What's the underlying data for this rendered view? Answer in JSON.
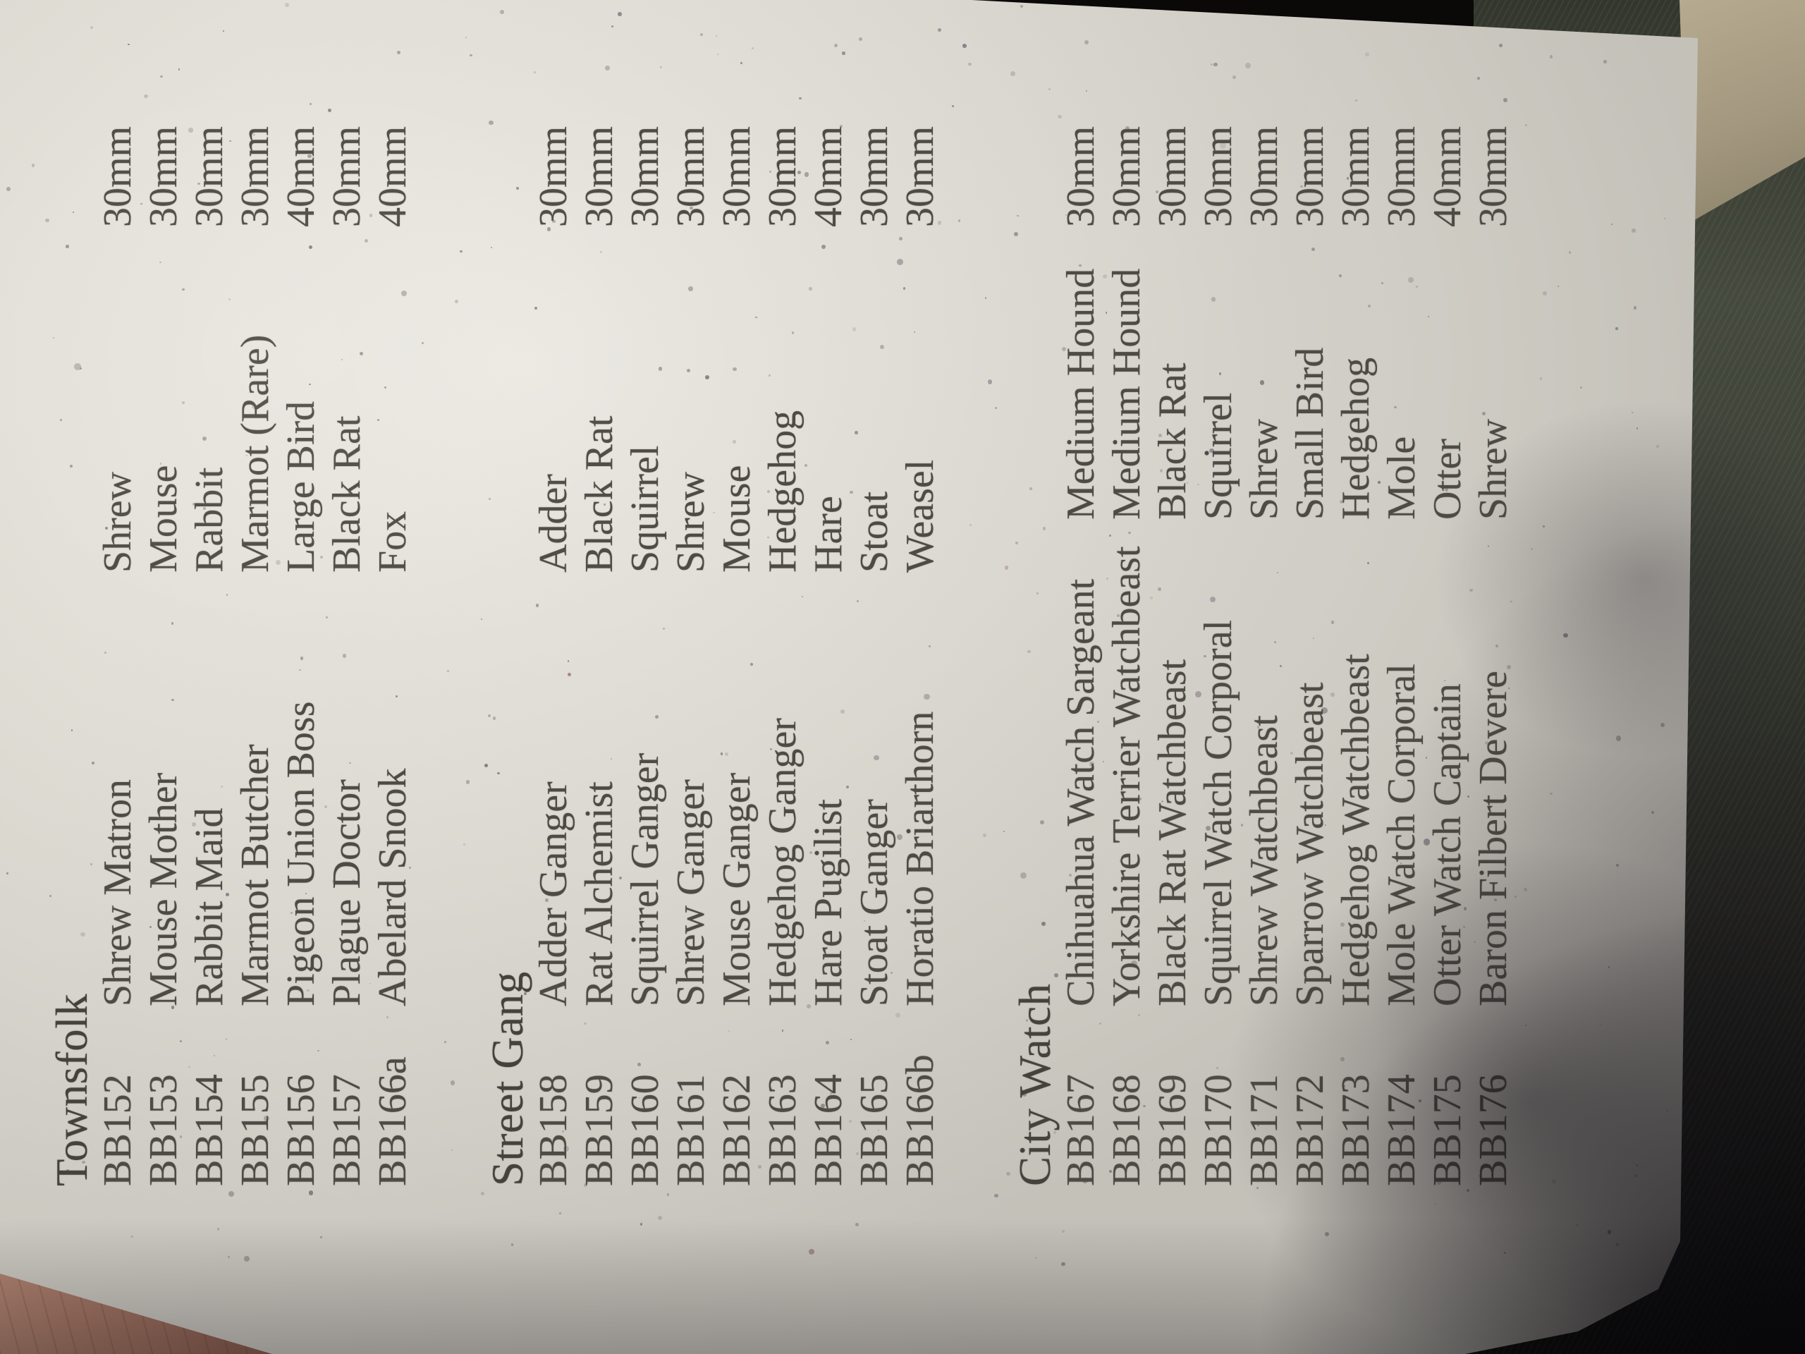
{
  "document": {
    "sections": [
      {
        "title": "Townsfolk",
        "rows": [
          {
            "code": "BB152",
            "name": "Shrew Matron",
            "animal": "Shrew",
            "size": "30mm"
          },
          {
            "code": "BB153",
            "name": "Mouse Mother",
            "animal": "Mouse",
            "size": "30mm"
          },
          {
            "code": "BB154",
            "name": "Rabbit Maid",
            "animal": "Rabbit",
            "size": "30mm"
          },
          {
            "code": "BB155",
            "name": "Marmot Butcher",
            "animal": "Marmot (Rare)",
            "size": "30mm"
          },
          {
            "code": "BB156",
            "name": "Pigeon Union Boss",
            "animal": "Large Bird",
            "size": "40mm"
          },
          {
            "code": "BB157",
            "name": "Plague Doctor",
            "animal": "Black Rat",
            "size": "30mm"
          },
          {
            "code": "BB166a",
            "name": "Abelard Snook",
            "animal": "Fox",
            "size": "40mm"
          }
        ]
      },
      {
        "title": "Street Gang",
        "rows": [
          {
            "code": "BB158",
            "name": "Adder Ganger",
            "animal": "Adder",
            "size": "30mm"
          },
          {
            "code": "BB159",
            "name": "Rat Alchemist",
            "animal": "Black Rat",
            "size": "30mm"
          },
          {
            "code": "BB160",
            "name": "Squirrel Ganger",
            "animal": "Squirrel",
            "size": "30mm"
          },
          {
            "code": "BB161",
            "name": "Shrew Ganger",
            "animal": "Shrew",
            "size": "30mm"
          },
          {
            "code": "BB162",
            "name": "Mouse Ganger",
            "animal": "Mouse",
            "size": "30mm"
          },
          {
            "code": "BB163",
            "name": "Hedgehog Ganger",
            "animal": "Hedgehog",
            "size": "30mm"
          },
          {
            "code": "BB164",
            "name": "Hare Pugilist",
            "animal": "Hare",
            "size": "40mm"
          },
          {
            "code": "BB165",
            "name": "Stoat Ganger",
            "animal": "Stoat",
            "size": "30mm"
          },
          {
            "code": "BB166b",
            "name": "Horatio Briarthorn",
            "animal": "Weasel",
            "size": "30mm"
          }
        ]
      },
      {
        "title": "City Watch",
        "rows": [
          {
            "code": "BB167",
            "name": "Chihuahua Watch Sargeant",
            "animal": "Medium Hound",
            "size": "30mm"
          },
          {
            "code": "BB168",
            "name": "Yorkshire Terrier Watchbeast",
            "animal": "Medium Hound",
            "size": "30mm"
          },
          {
            "code": "BB169",
            "name": "Black Rat Watchbeast",
            "animal": "Black Rat",
            "size": "30mm"
          },
          {
            "code": "BB170",
            "name": "Squirrel Watch Corporal",
            "animal": "Squirrel",
            "size": "30mm"
          },
          {
            "code": "BB171",
            "name": "Shrew Watchbeast",
            "animal": "Shrew",
            "size": "30mm"
          },
          {
            "code": "BB172",
            "name": "Sparrow Watchbeast",
            "animal": "Small Bird",
            "size": "30mm"
          },
          {
            "code": "BB173",
            "name": "Hedgehog Watchbeast",
            "animal": "Hedgehog",
            "size": "30mm"
          },
          {
            "code": "BB174",
            "name": "Mole Watch Corporal",
            "animal": "Mole",
            "size": "30mm"
          },
          {
            "code": "BB175",
            "name": "Otter Watch Captain",
            "animal": "Otter",
            "size": "40mm"
          },
          {
            "code": "BB176",
            "name": "Baron Filbert Devere",
            "animal": "Shrew",
            "size": "30mm"
          }
        ]
      }
    ]
  },
  "colors": {
    "paper": "#e0ddd5",
    "ink": "#4e4b45",
    "fabric_background": "#3a3e34",
    "table_surface": "#a3987f",
    "skin": "#9a6c5c",
    "shadow": "#16131a"
  }
}
